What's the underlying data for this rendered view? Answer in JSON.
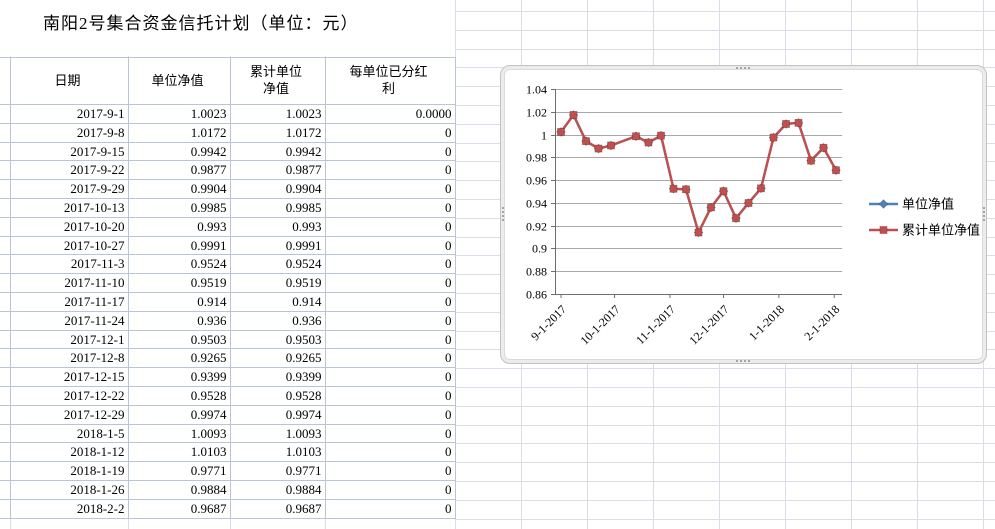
{
  "title": "南阳2号集合资金信托计划（单位：元）",
  "table": {
    "headers": [
      "日期",
      "单位净值",
      "累计单位\n净值",
      "每单位已分红\n利"
    ],
    "rows": [
      [
        "2017-9-1",
        "1.0023",
        "1.0023",
        "0.0000"
      ],
      [
        "2017-9-8",
        "1.0172",
        "1.0172",
        "0"
      ],
      [
        "2017-9-15",
        "0.9942",
        "0.9942",
        "0"
      ],
      [
        "2017-9-22",
        "0.9877",
        "0.9877",
        "0"
      ],
      [
        "2017-9-29",
        "0.9904",
        "0.9904",
        "0"
      ],
      [
        "2017-10-13",
        "0.9985",
        "0.9985",
        "0"
      ],
      [
        "2017-10-20",
        "0.993",
        "0.993",
        "0"
      ],
      [
        "2017-10-27",
        "0.9991",
        "0.9991",
        "0"
      ],
      [
        "2017-11-3",
        "0.9524",
        "0.9524",
        "0"
      ],
      [
        "2017-11-10",
        "0.9519",
        "0.9519",
        "0"
      ],
      [
        "2017-11-17",
        "0.914",
        "0.914",
        "0"
      ],
      [
        "2017-11-24",
        "0.936",
        "0.936",
        "0"
      ],
      [
        "2017-12-1",
        "0.9503",
        "0.9503",
        "0"
      ],
      [
        "2017-12-8",
        "0.9265",
        "0.9265",
        "0"
      ],
      [
        "2017-12-15",
        "0.9399",
        "0.9399",
        "0"
      ],
      [
        "2017-12-22",
        "0.9528",
        "0.9528",
        "0"
      ],
      [
        "2017-12-29",
        "0.9974",
        "0.9974",
        "0"
      ],
      [
        "2018-1-5",
        "1.0093",
        "1.0093",
        "0"
      ],
      [
        "2018-1-12",
        "1.0103",
        "1.0103",
        "0"
      ],
      [
        "2018-1-19",
        "0.9771",
        "0.9771",
        "0"
      ],
      [
        "2018-1-26",
        "0.9884",
        "0.9884",
        "0"
      ],
      [
        "2018-2-2",
        "0.9687",
        "0.9687",
        "0"
      ]
    ]
  },
  "chart_data": {
    "type": "line",
    "x_dates": [
      "2017-9-1",
      "2017-9-8",
      "2017-9-15",
      "2017-9-22",
      "2017-9-29",
      "2017-10-13",
      "2017-10-20",
      "2017-10-27",
      "2017-11-3",
      "2017-11-10",
      "2017-11-17",
      "2017-11-24",
      "2017-12-1",
      "2017-12-8",
      "2017-12-15",
      "2017-12-22",
      "2017-12-29",
      "2018-1-5",
      "2018-1-12",
      "2018-1-19",
      "2018-1-26",
      "2018-2-2"
    ],
    "series": [
      {
        "name": "单位净值",
        "color": "#4f81bd",
        "marker": "diamond",
        "values": [
          1.0023,
          1.0172,
          0.9942,
          0.9877,
          0.9904,
          0.9985,
          0.993,
          0.9991,
          0.9524,
          0.9519,
          0.914,
          0.936,
          0.9503,
          0.9265,
          0.9399,
          0.9528,
          0.9974,
          1.0093,
          1.0103,
          0.9771,
          0.9884,
          0.9687
        ]
      },
      {
        "name": "累计单位净值",
        "color": "#c0504d",
        "marker": "square",
        "values": [
          1.0023,
          1.0172,
          0.9942,
          0.9877,
          0.9904,
          0.9985,
          0.993,
          0.9991,
          0.9524,
          0.9519,
          0.914,
          0.936,
          0.9503,
          0.9265,
          0.9399,
          0.9528,
          0.9974,
          1.0093,
          1.0103,
          0.9771,
          0.9884,
          0.9687
        ]
      }
    ],
    "x_ticks": [
      {
        "label": "9-1-2017",
        "date": "2017-9-1"
      },
      {
        "label": "10-1-2017",
        "date": "2017-10-1"
      },
      {
        "label": "11-1-2017",
        "date": "2017-11-1"
      },
      {
        "label": "12-1-2017",
        "date": "2017-12-1"
      },
      {
        "label": "1-1-2018",
        "date": "2018-1-1"
      },
      {
        "label": "2-1-2018",
        "date": "2018-2-1"
      }
    ],
    "y_ticks": [
      "1.04",
      "1.02",
      "1",
      "0.98",
      "0.96",
      "0.94",
      "0.92",
      "0.9",
      "0.88",
      "0.86"
    ],
    "ylim": [
      0.86,
      1.04
    ],
    "grid": "horizontal",
    "legend_position": "right",
    "colors": {
      "axis": "#6e6e6e",
      "gridline": "#a8a8a8"
    }
  }
}
